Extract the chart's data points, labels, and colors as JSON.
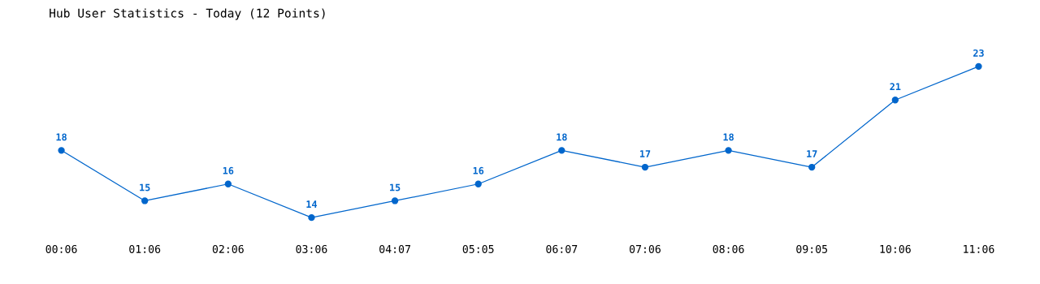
{
  "chart_data": {
    "type": "line",
    "title": "Hub User Statistics - Today (12 Points)",
    "categories": [
      "00:06",
      "01:06",
      "02:06",
      "03:06",
      "04:07",
      "05:05",
      "06:07",
      "07:06",
      "08:06",
      "09:05",
      "10:06",
      "11:06"
    ],
    "series": [
      {
        "color": "#0066cc",
        "values": [
          18,
          15,
          16,
          14,
          15,
          16,
          18,
          17,
          18,
          17,
          21,
          23
        ]
      }
    ],
    "data_labels": true,
    "marker": "circle",
    "line_style": "solid",
    "grid": false,
    "legend": false,
    "tick_labels": "x"
  }
}
